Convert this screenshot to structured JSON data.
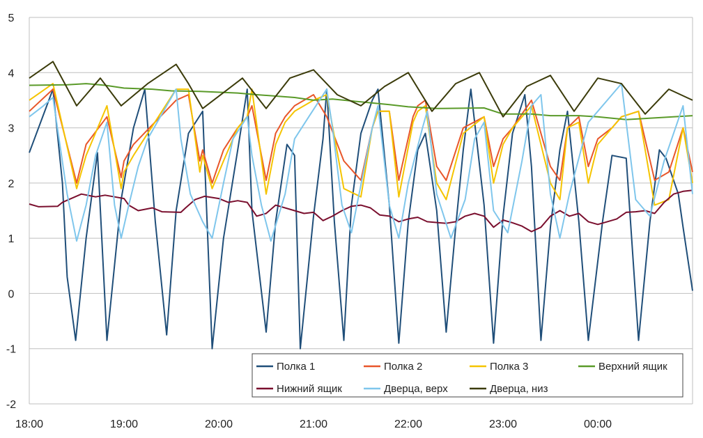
{
  "chart_data": {
    "type": "line",
    "title": "",
    "xlabel": "",
    "ylabel": "",
    "ylim": [
      -2,
      5
    ],
    "yticks": [
      "5",
      "4",
      "3",
      "2",
      "1",
      "0",
      "-1",
      "-2"
    ],
    "ytick_values": [
      5,
      4,
      3,
      2,
      1,
      0,
      -1,
      -2
    ],
    "xlim": [
      0,
      7
    ],
    "xticks": [
      "18:00",
      "19:00",
      "20:00",
      "21:00",
      "22:00",
      "23:00",
      "00:00"
    ],
    "xtick_values": [
      0,
      1,
      2,
      3,
      4,
      5,
      6
    ],
    "x_unit": "hours since 18:00",
    "grid": "horizontal",
    "legend_position": "bottom-right",
    "series": [
      {
        "name": "Полка 1",
        "color": "#1f4e79",
        "x": [
          0.0,
          0.25,
          0.35,
          0.4,
          0.49,
          0.6,
          0.72,
          0.82,
          0.97,
          1.1,
          1.22,
          1.33,
          1.45,
          1.55,
          1.68,
          1.83,
          1.93,
          2.05,
          2.2,
          2.3,
          2.35,
          2.5,
          2.6,
          2.72,
          2.8,
          2.86,
          3.0,
          3.1,
          3.14,
          3.22,
          3.32,
          3.4,
          3.5,
          3.62,
          3.68,
          3.8,
          3.9,
          4.0,
          4.1,
          4.18,
          4.3,
          4.4,
          4.5,
          4.58,
          4.66,
          4.8,
          4.9,
          5.0,
          5.1,
          5.23,
          5.3,
          5.4,
          5.5,
          5.6,
          5.68,
          5.8,
          5.9,
          6.05,
          6.15,
          6.3,
          6.43,
          6.55,
          6.65,
          6.72,
          6.85,
          6.9,
          7.0
        ],
        "y": [
          2.55,
          3.7,
          2.0,
          0.3,
          -0.85,
          1.0,
          2.55,
          -0.85,
          1.7,
          3.0,
          3.7,
          1.3,
          -0.75,
          1.5,
          2.9,
          3.3,
          -1.0,
          1.0,
          2.6,
          3.7,
          1.5,
          -0.7,
          1.3,
          2.7,
          2.5,
          -1.0,
          1.4,
          2.8,
          3.7,
          1.3,
          -0.85,
          1.6,
          2.9,
          3.5,
          3.7,
          1.6,
          -0.9,
          1.3,
          2.6,
          2.9,
          1.5,
          -0.7,
          1.2,
          2.6,
          3.7,
          1.6,
          -0.9,
          1.4,
          2.9,
          3.6,
          2.3,
          -0.85,
          1.2,
          2.6,
          3.3,
          1.3,
          -0.85,
          1.3,
          2.5,
          2.45,
          -0.85,
          1.3,
          2.6,
          2.45,
          1.8,
          1.2,
          0.05
        ]
      },
      {
        "name": "Полка 2",
        "color": "#e8562a",
        "x": [
          0.0,
          0.25,
          0.5,
          0.6,
          0.82,
          0.97,
          1.0,
          1.1,
          1.55,
          1.68,
          1.8,
          1.83,
          1.93,
          2.05,
          2.2,
          2.3,
          2.35,
          2.5,
          2.6,
          2.7,
          2.8,
          3.0,
          3.14,
          3.32,
          3.5,
          3.62,
          3.68,
          3.8,
          3.9,
          4.05,
          4.1,
          4.18,
          4.3,
          4.4,
          4.58,
          4.8,
          4.9,
          5.0,
          5.1,
          5.3,
          5.5,
          5.6,
          5.68,
          5.8,
          5.9,
          6.0,
          6.15,
          6.25,
          6.43,
          6.6,
          6.75,
          6.9,
          7.0
        ],
        "y": [
          3.3,
          3.7,
          2.0,
          2.7,
          3.2,
          2.1,
          2.4,
          2.7,
          3.5,
          3.6,
          2.4,
          2.6,
          2.0,
          2.6,
          3.0,
          3.2,
          3.4,
          2.05,
          2.9,
          3.2,
          3.4,
          3.6,
          3.2,
          2.4,
          2.05,
          3.0,
          3.3,
          3.3,
          2.05,
          3.2,
          3.4,
          3.5,
          2.3,
          2.05,
          3.0,
          3.2,
          2.3,
          2.8,
          3.0,
          3.5,
          2.3,
          2.05,
          3.0,
          3.2,
          2.3,
          2.8,
          3.0,
          3.2,
          3.3,
          2.05,
          2.2,
          3.0,
          2.2
        ]
      },
      {
        "name": "Полка 3",
        "color": "#f5c400",
        "x": [
          0.0,
          0.25,
          0.5,
          0.6,
          0.82,
          0.97,
          1.0,
          1.1,
          1.55,
          1.68,
          1.8,
          1.83,
          1.93,
          2.05,
          2.2,
          2.3,
          2.35,
          2.5,
          2.6,
          2.7,
          2.8,
          3.0,
          3.14,
          3.32,
          3.5,
          3.62,
          3.68,
          3.8,
          3.9,
          4.05,
          4.1,
          4.18,
          4.3,
          4.4,
          4.58,
          4.8,
          4.9,
          5.0,
          5.1,
          5.3,
          5.5,
          5.6,
          5.68,
          5.8,
          5.9,
          6.0,
          6.15,
          6.25,
          6.43,
          6.6,
          6.75,
          6.9,
          7.0
        ],
        "y": [
          3.5,
          3.8,
          1.9,
          2.5,
          3.4,
          1.9,
          2.2,
          2.5,
          3.7,
          3.7,
          2.2,
          2.5,
          1.9,
          2.4,
          3.0,
          3.2,
          3.7,
          1.8,
          2.7,
          3.1,
          3.3,
          3.5,
          3.6,
          1.9,
          1.75,
          3.0,
          3.3,
          3.3,
          1.75,
          3.1,
          3.3,
          3.4,
          2.0,
          1.7,
          2.9,
          3.2,
          2.0,
          2.7,
          3.0,
          3.4,
          2.0,
          1.7,
          3.0,
          3.1,
          2.0,
          2.7,
          3.0,
          3.2,
          3.3,
          1.6,
          1.7,
          3.0,
          2.0
        ]
      },
      {
        "name": "Верхний ящик",
        "color": "#5a9a29",
        "x": [
          0.0,
          0.4,
          0.6,
          0.8,
          1.0,
          1.3,
          1.5,
          1.8,
          2.2,
          2.4,
          2.8,
          3.0,
          3.2,
          3.5,
          3.8,
          4.0,
          4.3,
          4.8,
          5.0,
          5.3,
          5.5,
          5.8,
          6.0,
          6.3,
          6.5,
          7.0
        ],
        "y": [
          3.77,
          3.78,
          3.8,
          3.77,
          3.72,
          3.7,
          3.67,
          3.66,
          3.63,
          3.6,
          3.55,
          3.5,
          3.52,
          3.47,
          3.42,
          3.38,
          3.35,
          3.36,
          3.25,
          3.25,
          3.22,
          3.22,
          3.2,
          3.15,
          3.17,
          3.22
        ]
      },
      {
        "name": "Нижний ящик",
        "color": "#7a0f2e",
        "x": [
          0.0,
          0.1,
          0.3,
          0.35,
          0.55,
          0.7,
          0.8,
          0.9,
          1.0,
          1.05,
          1.15,
          1.3,
          1.4,
          1.6,
          1.65,
          1.75,
          1.85,
          2.0,
          2.1,
          2.2,
          2.3,
          2.4,
          2.5,
          2.6,
          2.8,
          2.9,
          3.0,
          3.1,
          3.2,
          3.3,
          3.4,
          3.5,
          3.6,
          3.7,
          3.8,
          3.9,
          4.0,
          4.1,
          4.2,
          4.4,
          4.5,
          4.6,
          4.7,
          4.8,
          4.9,
          5.0,
          5.1,
          5.2,
          5.3,
          5.4,
          5.5,
          5.6,
          5.7,
          5.8,
          5.9,
          6.0,
          6.1,
          6.2,
          6.3,
          6.4,
          6.5,
          6.6,
          6.7,
          6.8,
          6.9,
          7.0
        ],
        "y": [
          1.62,
          1.57,
          1.58,
          1.65,
          1.8,
          1.75,
          1.78,
          1.75,
          1.72,
          1.6,
          1.5,
          1.55,
          1.48,
          1.47,
          1.55,
          1.7,
          1.76,
          1.72,
          1.65,
          1.68,
          1.65,
          1.4,
          1.45,
          1.6,
          1.5,
          1.45,
          1.47,
          1.32,
          1.4,
          1.5,
          1.58,
          1.6,
          1.55,
          1.42,
          1.4,
          1.3,
          1.35,
          1.38,
          1.3,
          1.27,
          1.3,
          1.4,
          1.45,
          1.4,
          1.2,
          1.33,
          1.28,
          1.22,
          1.12,
          1.2,
          1.4,
          1.5,
          1.4,
          1.45,
          1.3,
          1.25,
          1.3,
          1.35,
          1.47,
          1.48,
          1.5,
          1.45,
          1.65,
          1.8,
          1.85,
          1.87
        ]
      },
      {
        "name": "Дверца, верх",
        "color": "#7fc6ec",
        "x": [
          0.0,
          0.15,
          0.25,
          0.4,
          0.5,
          0.6,
          0.7,
          0.82,
          0.9,
          0.97,
          1.05,
          1.15,
          1.25,
          1.55,
          1.6,
          1.7,
          1.83,
          1.93,
          2.05,
          2.15,
          2.3,
          2.35,
          2.45,
          2.55,
          2.7,
          2.8,
          2.95,
          3.14,
          3.2,
          3.3,
          3.4,
          3.55,
          3.62,
          3.68,
          3.8,
          3.9,
          4.0,
          4.15,
          4.2,
          4.3,
          4.45,
          4.6,
          4.7,
          4.8,
          4.9,
          5.05,
          5.2,
          5.3,
          5.4,
          5.5,
          5.6,
          5.7,
          5.9,
          6.0,
          6.15,
          6.25,
          6.4,
          6.55,
          6.7,
          6.9,
          7.0
        ],
        "y": [
          3.2,
          3.4,
          3.55,
          1.8,
          0.95,
          1.6,
          2.5,
          3.1,
          1.6,
          1.0,
          1.6,
          2.3,
          2.8,
          3.7,
          2.8,
          1.8,
          1.3,
          1.0,
          2.0,
          2.8,
          3.2,
          2.5,
          1.6,
          0.95,
          1.8,
          2.8,
          3.2,
          3.7,
          3.0,
          1.6,
          1.1,
          2.4,
          3.0,
          3.4,
          1.6,
          1.0,
          2.0,
          3.0,
          3.3,
          1.8,
          1.0,
          1.7,
          2.8,
          3.1,
          1.5,
          1.1,
          2.4,
          3.4,
          3.6,
          1.8,
          1.0,
          1.8,
          3.1,
          3.3,
          3.6,
          3.8,
          1.7,
          1.4,
          2.4,
          3.4,
          1.8
        ]
      },
      {
        "name": "Дверца, низ",
        "color": "#3b3b0a",
        "x": [
          0.0,
          0.25,
          0.5,
          0.75,
          0.97,
          1.25,
          1.55,
          1.68,
          1.83,
          2.25,
          2.5,
          2.75,
          3.0,
          3.25,
          3.5,
          3.75,
          4.0,
          4.25,
          4.5,
          4.75,
          5.0,
          5.25,
          5.5,
          5.75,
          6.0,
          6.25,
          6.5,
          6.75,
          7.0
        ],
        "y": [
          3.9,
          4.2,
          3.4,
          3.9,
          3.4,
          3.8,
          4.15,
          3.8,
          3.35,
          3.9,
          3.35,
          3.9,
          4.05,
          3.6,
          3.4,
          3.75,
          4.0,
          3.3,
          3.8,
          4.0,
          3.2,
          3.75,
          3.95,
          3.3,
          3.9,
          3.8,
          3.25,
          3.7,
          3.5
        ]
      }
    ]
  }
}
